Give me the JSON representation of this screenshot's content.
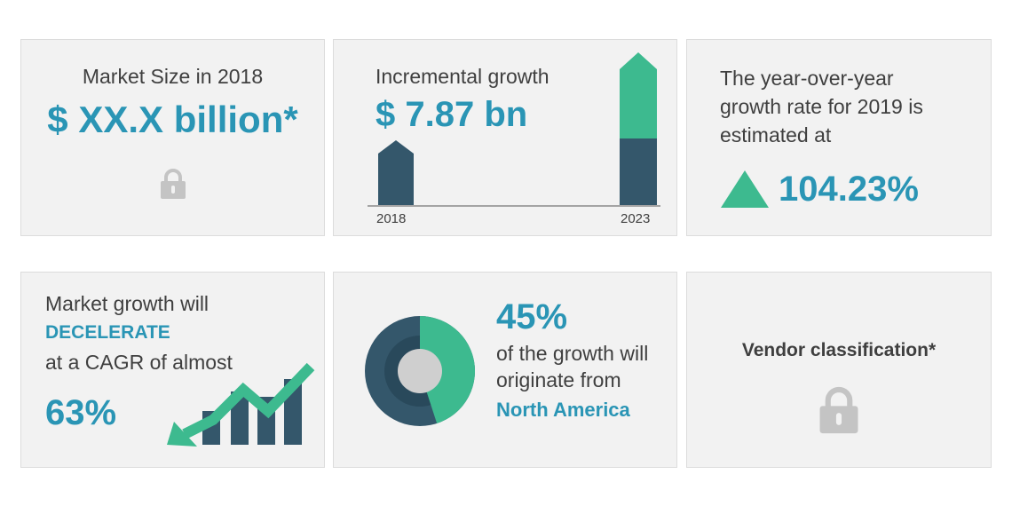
{
  "colors": {
    "card_bg": "#f2f2f2",
    "card_border": "#dcdcdc",
    "text_dark": "#3f3f3f",
    "accent_teal_blue": "#2a95b5",
    "navy": "#34576b",
    "green": "#3dba8f",
    "lock_gray": "#c4c4c4",
    "donut_inner_ring": "#29495b",
    "donut_center": "#cfcfcf"
  },
  "cards": {
    "market_size": {
      "label": "Market Size in 2018",
      "value": "$ XX.X billion*",
      "icon": "lock-icon"
    },
    "incremental_growth": {
      "label": "Incremental growth",
      "value": "$ 7.87 bn",
      "year_start": "2018",
      "year_end": "2023",
      "bar_2018_share": 0.5,
      "bar_2023_green_share": 0.5
    },
    "yoy": {
      "line1": "The year-over-year",
      "line2": "growth rate for 2019 is",
      "line3": "estimated at",
      "value": "104.23%",
      "icon": "triangle-up-icon"
    },
    "cagr": {
      "line1": "Market growth will",
      "emphasis": "DECELERATE",
      "line3": "at a CAGR of almost",
      "value": "63%",
      "icon": "declining-trend-icon"
    },
    "region": {
      "value": "45%",
      "line1": "of the growth will",
      "line2": "originate from",
      "region_name": "North America",
      "share_percent": 45,
      "icon": "donut-chart-icon"
    },
    "vendor": {
      "label": "Vendor classification*",
      "icon": "lock-icon"
    }
  }
}
